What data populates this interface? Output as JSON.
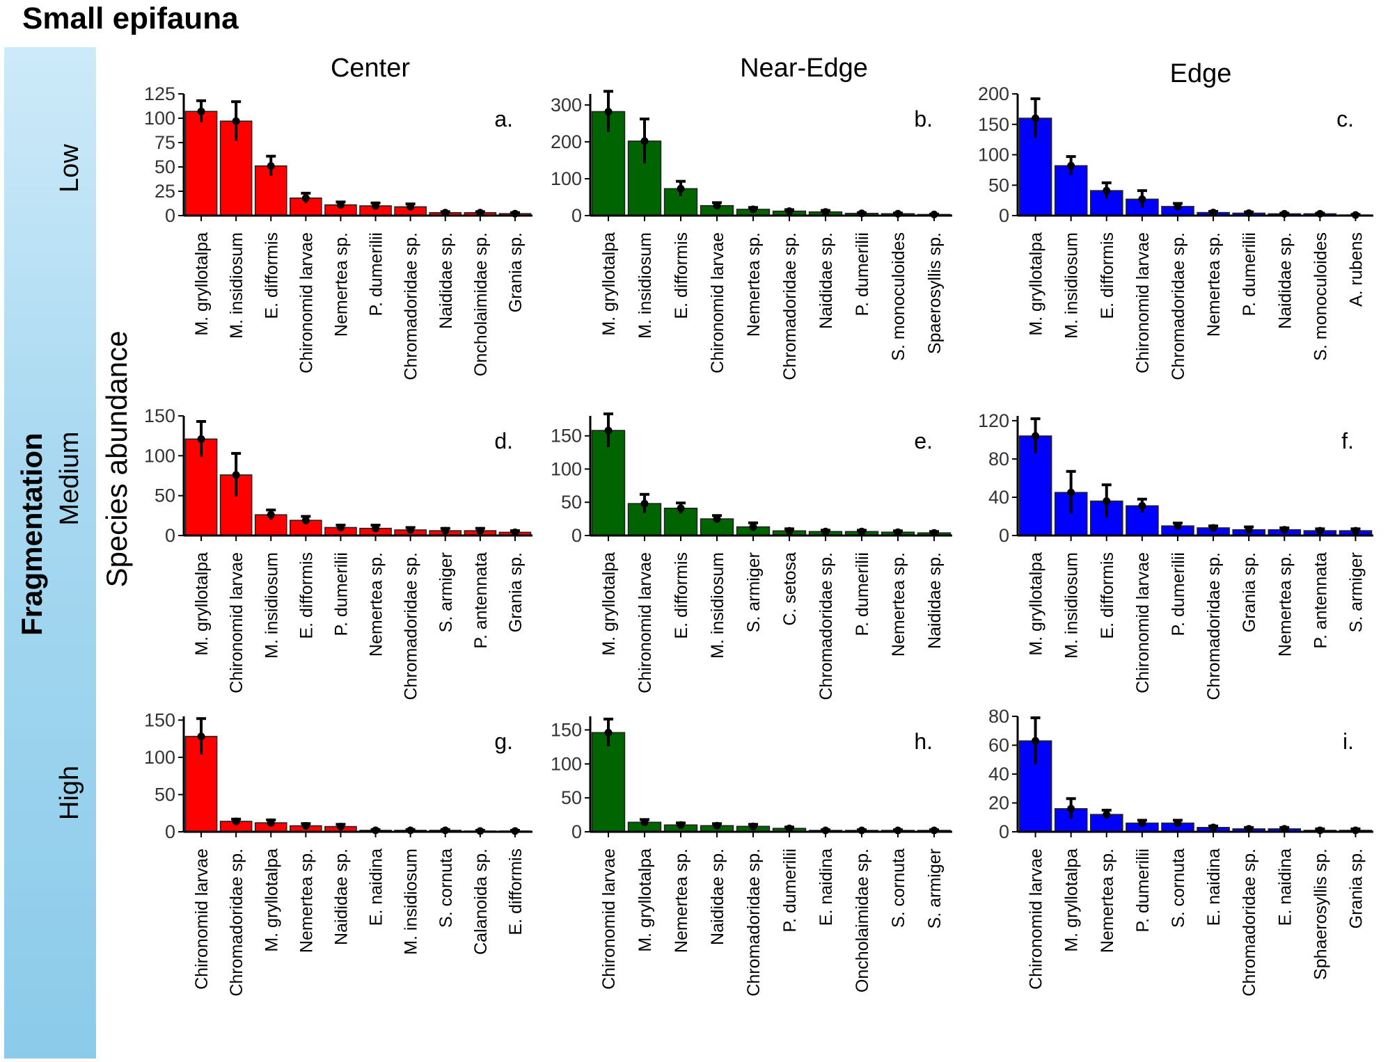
{
  "title": "Small epifauna",
  "y_axis_label": "Species abundance",
  "side_label": "Fragmentation",
  "column_headers": [
    "Center",
    "Near-Edge",
    "Edge"
  ],
  "row_labels": [
    "Low",
    "Medium",
    "High"
  ],
  "colors": {
    "Center": "#ff0000",
    "Near-Edge": "#006400",
    "Edge": "#0000ff",
    "errorbar": "#000000"
  },
  "chart_data": [
    {
      "type": "bar",
      "panel": "a.",
      "row": "Low",
      "column": "Center",
      "ylim": [
        0,
        125
      ],
      "yticks": [
        0,
        25,
        50,
        75,
        100,
        125
      ],
      "categories": [
        "M. gryllotalpa",
        "M. insidiosum",
        "E. difformis",
        "Chironomid larvae",
        "Nemertea sp.",
        "P. dumerilii",
        "Chromadoridae sp.",
        "Naididae sp.",
        "Oncholaimidae sp.",
        "Grania sp."
      ],
      "values": [
        107,
        97,
        51,
        18,
        11,
        10,
        9,
        3,
        3,
        2
      ],
      "errors": [
        11,
        20,
        10,
        5,
        3,
        3,
        3,
        1,
        1,
        1
      ]
    },
    {
      "type": "bar",
      "panel": "b.",
      "row": "Low",
      "column": "Near-Edge",
      "ylim": [
        0,
        330
      ],
      "yticks": [
        0,
        100,
        200,
        300
      ],
      "categories": [
        "M. gryllotalpa",
        "M. insidiosum",
        "E. difformis",
        "Chironomid larvae",
        "Nemertea sp.",
        "Chromadoridae sp.",
        "Naididae sp.",
        "P. dumerilii",
        "S. monoculoides",
        "Spaerosyllis sp."
      ],
      "values": [
        282,
        202,
        73,
        27,
        17,
        12,
        10,
        6,
        5,
        3
      ],
      "errors": [
        55,
        60,
        20,
        8,
        5,
        4,
        4,
        2,
        2,
        1
      ]
    },
    {
      "type": "bar",
      "panel": "c.",
      "row": "Low",
      "column": "Edge",
      "ylim": [
        0,
        200
      ],
      "yticks": [
        0,
        50,
        100,
        150,
        200
      ],
      "categories": [
        "M. gryllotalpa",
        "M. insidiosum",
        "E. difformis",
        "Chironomid larvae",
        "Chromadoridae sp.",
        "Nemertea sp.",
        "P. dumerilii",
        "Naididae sp.",
        "S. monoculoides",
        "A. rubens"
      ],
      "values": [
        160,
        82,
        41,
        27,
        15,
        5,
        4,
        3,
        3,
        1
      ],
      "errors": [
        32,
        15,
        13,
        14,
        5,
        2,
        2,
        1,
        1,
        1
      ]
    },
    {
      "type": "bar",
      "panel": "d.",
      "row": "Medium",
      "column": "Center",
      "ylim": [
        0,
        150
      ],
      "yticks": [
        0,
        50,
        100,
        150
      ],
      "categories": [
        "M. gryllotalpa",
        "Chironomid larvae",
        "M. insidiosum",
        "E. difformis",
        "P. dumerilii",
        "Nemertea sp.",
        "Chromadoridae sp.",
        "S. armiger",
        "P. antennata",
        "Grania sp."
      ],
      "values": [
        121,
        76,
        26,
        19,
        10,
        9,
        7,
        6,
        6,
        4
      ],
      "errors": [
        22,
        27,
        6,
        5,
        3,
        4,
        3,
        3,
        3,
        2
      ]
    },
    {
      "type": "bar",
      "panel": "e.",
      "row": "Medium",
      "column": "Near-Edge",
      "ylim": [
        0,
        180
      ],
      "yticks": [
        0,
        50,
        100,
        150
      ],
      "categories": [
        "M. gryllotalpa",
        "Chironomid larvae",
        "E. difformis",
        "M. insidiosum",
        "S. armiger",
        "C. setosa",
        "Chromadoridae sp.",
        "P. dumerilii",
        "Nemertea sp.",
        "Naididae sp."
      ],
      "values": [
        158,
        48,
        41,
        25,
        13,
        7,
        6,
        6,
        5,
        4
      ],
      "errors": [
        25,
        14,
        8,
        5,
        6,
        3,
        2,
        2,
        2,
        2
      ]
    },
    {
      "type": "bar",
      "panel": "f.",
      "row": "Medium",
      "column": "Edge",
      "ylim": [
        0,
        125
      ],
      "yticks": [
        0,
        40,
        80,
        120
      ],
      "categories": [
        "M. gryllotalpa",
        "M. insidiosum",
        "E. difformis",
        "Chironomid larvae",
        "P. dumerilii",
        "Chromadoridae sp.",
        "Grania sp.",
        "Nemertea sp.",
        "P. antennata",
        "S. armiger"
      ],
      "values": [
        104,
        45,
        36,
        31,
        10,
        8,
        6,
        6,
        5,
        5
      ],
      "errors": [
        18,
        22,
        17,
        7,
        3,
        2,
        3,
        2,
        2,
        2
      ]
    },
    {
      "type": "bar",
      "panel": "g.",
      "row": "High",
      "column": "Center",
      "ylim": [
        0,
        155
      ],
      "yticks": [
        0,
        50,
        100,
        150
      ],
      "categories": [
        "Chironomid larvae",
        "Chromadoridae sp.",
        "M. gryllotalpa",
        "Nemertea sp.",
        "Naididae sp.",
        "E. naidina",
        "M. insidiosum",
        "S. cornuta",
        "Calanoida sp.",
        "E. difformis"
      ],
      "values": [
        128,
        14,
        12,
        8,
        7,
        2,
        2,
        2,
        1,
        1
      ],
      "errors": [
        24,
        3,
        4,
        3,
        3,
        1,
        1,
        1,
        1,
        1
      ]
    },
    {
      "type": "bar",
      "panel": "h.",
      "row": "High",
      "column": "Near-Edge",
      "ylim": [
        0,
        170
      ],
      "yticks": [
        0,
        50,
        100,
        150
      ],
      "categories": [
        "Chironomid larvae",
        "M. gryllotalpa",
        "Nemertea sp.",
        "Naididae sp.",
        "Chromadoridae sp.",
        "P. dumerilii",
        "E. naidina",
        "Oncholaimidae sp.",
        "S. cornuta",
        "S. armiger"
      ],
      "values": [
        146,
        14,
        10,
        9,
        8,
        5,
        2,
        2,
        2,
        2
      ],
      "errors": [
        20,
        4,
        3,
        3,
        3,
        2,
        1,
        1,
        1,
        1
      ]
    },
    {
      "type": "bar",
      "panel": "i.",
      "row": "High",
      "column": "Edge",
      "ylim": [
        0,
        80
      ],
      "yticks": [
        0,
        20,
        40,
        60,
        80
      ],
      "categories": [
        "Chironomid larvae",
        "M. gryllotalpa",
        "Nemertea sp.",
        "P. dumerilii",
        "S. cornuta",
        "E. naidina",
        "Chromadoridae sp.",
        "E. naidina",
        "Sphaerosyllis sp.",
        "Grania sp."
      ],
      "values": [
        63,
        16,
        12,
        6,
        6,
        3,
        2,
        2,
        1,
        1
      ],
      "errors": [
        16,
        7,
        3,
        2,
        2,
        1,
        1,
        1,
        1,
        1
      ]
    }
  ]
}
